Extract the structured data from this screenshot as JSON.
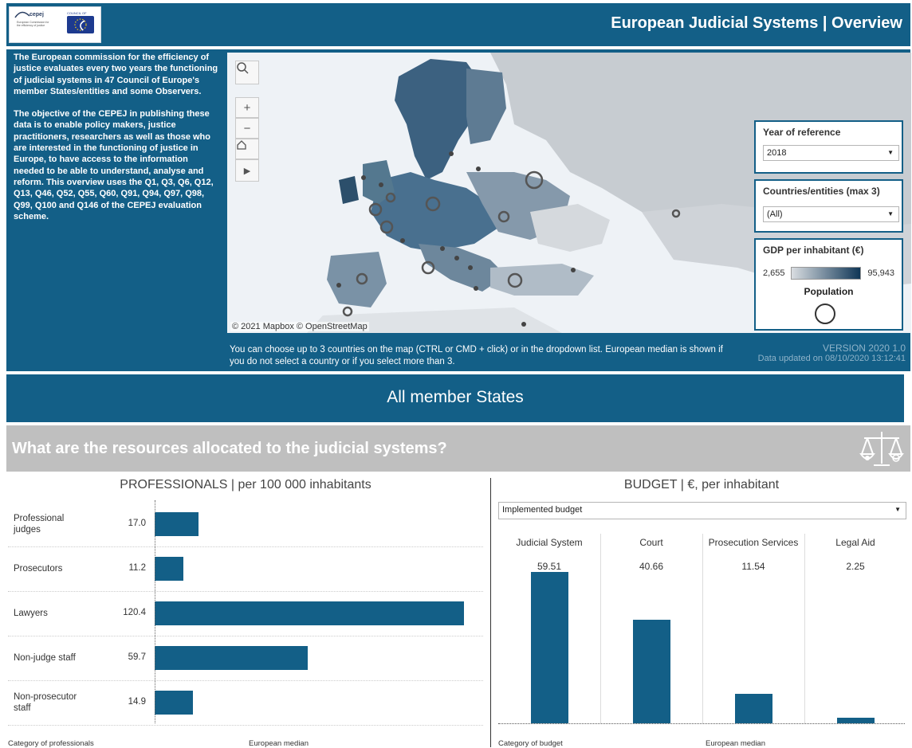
{
  "header": {
    "title": "European Judicial Systems | Overview",
    "logo_cepej_text": "cepej",
    "logo_cepej_lines": "European Commission for the efficiency of justice",
    "logo_coe_text": "COUNCIL OF EUROPE"
  },
  "intro": {
    "paragraph1": "The European commission for the efficiency of justice evaluates every two years the functioning of judicial systems in 47 Council of Europe's member States/entities and some Observers.",
    "paragraph2": "The objective of the CEPEJ in publishing these data is to enable policy makers, justice practitioners, researchers as well as those who are interested in the functioning of justice in Europe, to have access to the information needed to be able to understand, analyse and reform. This overview uses the Q1, Q3, Q6, Q12, Q13, Q46, Q52, Q55, Q60, Q91, Q94, Q97, Q98, Q99, Q100 and Q146 of the CEPEJ evaluation scheme."
  },
  "map": {
    "credit": "© 2021 Mapbox © OpenStreetMap",
    "tools": [
      "search-icon",
      "zoom-in-icon",
      "zoom-out-icon",
      "home-icon",
      "play-icon"
    ]
  },
  "filters": {
    "year_label": "Year of reference",
    "year_value": "2018",
    "countries_label": "Countries/entities (max 3)",
    "countries_value": "(All)",
    "gdp_label": "GDP per inhabitant (€)",
    "gdp_min": "2,655",
    "gdp_max": "95,943",
    "population_label": "Population"
  },
  "map_note": "You can choose up to 3 countries on the map (CTRL or CMD + click) or in the dropdown list. European median is shown if you do not select a country or if you select more than 3.",
  "version": {
    "version": "VERSION 2020 1.0",
    "updated": "Data updated on 08/10/2020 13:12:41"
  },
  "member_states": "All member States",
  "question": "What are the resources allocated to the judicial systems?",
  "professionals": {
    "title": "PROFESSIONALS | per 100 000 inhabitants",
    "x_caption": "Category of professionals",
    "median_caption": "European median",
    "rows": [
      {
        "label": "Professional judges",
        "value": "17.0",
        "num": 17.0
      },
      {
        "label": "Prosecutors",
        "value": "11.2",
        "num": 11.2
      },
      {
        "label": "Lawyers",
        "value": "120.4",
        "num": 120.4
      },
      {
        "label": "Non-judge staff",
        "value": "59.7",
        "num": 59.7
      },
      {
        "label": "Non-prosecutor staff",
        "value": "14.9",
        "num": 14.9
      }
    ]
  },
  "budget": {
    "title": "BUDGET | €, per inhabitant",
    "dropdown_value": "Implemented budget",
    "x_caption": "Category of budget",
    "median_caption": "European median",
    "columns": [
      {
        "label": "Judicial System",
        "value": "59.51",
        "num": 59.51
      },
      {
        "label": "Court",
        "value": "40.66",
        "num": 40.66
      },
      {
        "label": "Prosecution Services",
        "value": "11.54",
        "num": 11.54
      },
      {
        "label": "Legal Aid",
        "value": "2.25",
        "num": 2.25
      }
    ]
  },
  "chart_data": [
    {
      "type": "bar",
      "title": "PROFESSIONALS | per 100 000 inhabitants",
      "categories": [
        "Professional judges",
        "Prosecutors",
        "Lawyers",
        "Non-judge staff",
        "Non-prosecutor staff"
      ],
      "values": [
        17.0,
        11.2,
        120.4,
        59.7,
        14.9
      ],
      "xlabel": "Category of professionals",
      "ylabel": "European median"
    },
    {
      "type": "bar",
      "title": "BUDGET | €, per inhabitant",
      "categories": [
        "Judicial System",
        "Court",
        "Prosecution Services",
        "Legal Aid"
      ],
      "values": [
        59.51,
        40.66,
        11.54,
        2.25
      ],
      "xlabel": "Category of budget",
      "ylabel": "European median"
    }
  ],
  "colors": {
    "primary": "#135f87",
    "question_bg": "#bfbfbf",
    "version_text": "#8fb3c9"
  }
}
